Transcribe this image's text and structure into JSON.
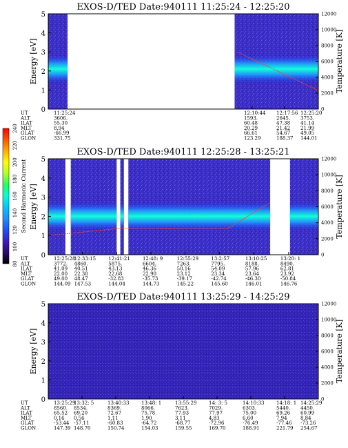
{
  "chart_data": [
    {
      "type": "heatmap",
      "title": "EXOS-D/TED   Date:940111   11:25:24 - 12:25:20",
      "ylabel": "Energy [eV]",
      "ylim": [
        0,
        5
      ],
      "yticks": [
        "0",
        "1",
        "2",
        "3",
        "4",
        "5"
      ],
      "y2label": "Temperature [K]",
      "y2lim": [
        0,
        12000
      ],
      "y2ticks": [
        "0",
        "2000",
        "4000",
        "6000",
        "8000",
        "10000",
        "12000"
      ],
      "x_range": [
        0,
        60
      ],
      "data_spans": [
        [
          0,
          4.3
        ],
        [
          41.4,
          60
        ]
      ],
      "ephemeris": {
        "labels": [
          "UT",
          "ALT",
          "ILAT",
          "MLT",
          "GLAT",
          "GLON"
        ],
        "columns": [
          {
            "at": 0,
            "values": [
              "11:25:24",
              "3606.",
              "55.30",
              "8.94",
              "-66.99",
              "331.75"
            ]
          },
          {
            "at": 45.3,
            "values": [
              "12:10:44",
              "1593.",
              "60.48",
              "20.29",
              "66.61",
              "123.29"
            ]
          },
          {
            "at": 52.5,
            "values": [
              "12:17:56",
              "2645.",
              "47.38",
              "21.42",
              "54.67",
              "188.37"
            ]
          },
          {
            "at": 60,
            "values": [
              "12:25:20",
              "3753.",
              "41.14",
              "21.99",
              "49.05",
              "144.01"
            ]
          }
        ]
      }
    },
    {
      "type": "heatmap",
      "title": "EXOS-D/TED   Date:940111   12:25:28 - 13:25:21",
      "ylabel": "Energy [eV]",
      "ylim": [
        0,
        5
      ],
      "yticks": [
        "0",
        "1",
        "2",
        "3",
        "4",
        "5"
      ],
      "y2label": "Temperature [K]",
      "y2lim": [
        0,
        12000
      ],
      "y2ticks": [
        "0",
        "2000",
        "4000",
        "6000",
        "8000",
        "10000",
        "12000"
      ],
      "x_range": [
        0,
        60
      ],
      "data_spans": [
        [
          0,
          3.8
        ],
        [
          5.0,
          15.2
        ],
        [
          16.0,
          16.8
        ],
        [
          17.8,
          49.3
        ],
        [
          53.7,
          60
        ]
      ],
      "ephemeris": {
        "labels": [
          "UT",
          "ALT",
          "ILAT",
          "MLT",
          "GLAT",
          "GLON"
        ],
        "columns": [
          {
            "at": 0,
            "values": [
              "12:25:28",
              "3772.",
              "41.09",
              "22.00",
              "49.00",
              "144.09"
            ]
          },
          {
            "at": 7.6,
            "values": [
              "12:33:15",
              "4860.",
              "40.51",
              "22.38",
              "48.47",
              "147.53"
            ]
          },
          {
            "at": 15.2,
            "values": [
              "12:41:21",
              "5875.",
              "43.13",
              "22.68",
              "-32.83",
              "144.04"
            ]
          },
          {
            "at": 22.8,
            "values": [
              "12:48: 9",
              "6604.",
              "46.36",
              "22.90",
              "-35.73",
              "144.73"
            ]
          },
          {
            "at": 30.4,
            "values": [
              "12:55:29",
              "7263.",
              "50.16",
              "23.12",
              "-39.17",
              "145.22"
            ]
          },
          {
            "at": 38.0,
            "values": [
              "13:2:57",
              "7795.",
              "54.09",
              "23.34",
              "-42.74",
              "145.60"
            ]
          },
          {
            "at": 45.6,
            "values": [
              "13:10:25",
              "8188.",
              "57.96",
              "23.64",
              "-46.30",
              "146.01"
            ]
          },
          {
            "at": 53.4,
            "values": [
              "13:20: 1",
              "8490.",
              "62.81",
              "23.92",
              "-50.84",
              "146.76"
            ]
          }
        ]
      }
    },
    {
      "type": "heatmap",
      "title": "EXOS-D/TED   Date:940111   13:25:29 - 14:25:29",
      "ylabel": "Energy [eV]",
      "ylim": [
        0,
        5
      ],
      "yticks": [
        "0",
        "1",
        "2",
        "3",
        "4",
        "5"
      ],
      "y2label": "Temperature [K]",
      "y2lim": [
        0,
        12000
      ],
      "y2ticks": [
        "0",
        "2000",
        "4000",
        "6000",
        "8000",
        "10000",
        "12000"
      ],
      "x_range": [
        0,
        60
      ],
      "data_spans": [
        [
          0,
          60
        ]
      ],
      "ephemeris": {
        "labels": [
          "UT",
          "ALT",
          "ILAT",
          "MLT",
          "GLAT",
          "GLON"
        ],
        "columns": [
          {
            "at": 0,
            "values": [
              "13:25:29",
              "8560.",
              "65.52",
              "0.16",
              "-53.44",
              "147.39"
            ]
          },
          {
            "at": 7.5,
            "values": [
              "13:32: 5",
              "8534.",
              "69.20",
              "0.56",
              "-57.11",
              "148.70"
            ]
          },
          {
            "at": 15.0,
            "values": [
              "13:40:33",
              "8369.",
              "72.67",
              "1.11",
              "-60.83",
              "150.74"
            ]
          },
          {
            "at": 22.5,
            "values": [
              "13:48: 1",
              "8066.",
              "75.78",
              "1.90",
              "-64.72",
              "154.03"
            ]
          },
          {
            "at": 30.0,
            "values": [
              "13:55:29",
              "7623.",
              "77.93",
              "3.11",
              "-68.77",
              "159.55"
            ]
          },
          {
            "at": 37.5,
            "values": [
              "14: 3: 5",
              "7029.",
              "77.97",
              "4.83",
              "-72.96",
              "169.70"
            ]
          },
          {
            "at": 45.0,
            "values": [
              "14:10:33",
              "6303.",
              "75.00",
              "6.60",
              "-76.49",
              "188.91"
            ]
          },
          {
            "at": 52.5,
            "values": [
              "14:18: 1",
              "5440.",
              "69.26",
              "7.94",
              "-77.46",
              "221.79"
            ]
          },
          {
            "at": 60,
            "values": [
              "14:25:29",
              "4450.",
              "60.99",
              "8.84",
              "-73.26",
              "254.67"
            ]
          }
        ]
      }
    }
  ],
  "colorbar": {
    "label": "Second Harmonic Current",
    "ticks": [
      "80",
      "100",
      "120",
      "140",
      "160",
      "180",
      "200",
      "220",
      "240"
    ],
    "range": [
      80,
      240
    ],
    "colors": [
      "#000000",
      "#2a0a6e",
      "#3c1ec8",
      "#1e50ff",
      "#1e8cff",
      "#00c8ff",
      "#00ffd8",
      "#20ff60",
      "#b4ff20",
      "#ffff00",
      "#ffb000",
      "#ff5000",
      "#ff0000"
    ]
  }
}
